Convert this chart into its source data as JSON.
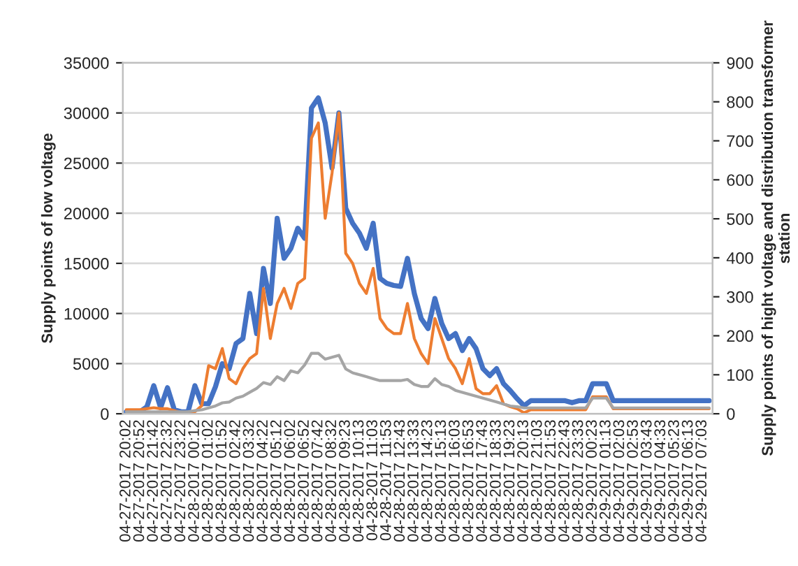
{
  "chart_data": {
    "type": "line",
    "ylabel": "Supply points of low voltage",
    "y2label": "Supply points of hight voltage and distribution transformer station",
    "categories": [
      "04-27-2017 20:02",
      null,
      "04-27-2017 20:52",
      null,
      "04-27-2017 21:42",
      null,
      "04-27-2017 22:32",
      null,
      "04-27-2017 23:22",
      null,
      "04-28-2017 00:12",
      null,
      "04-28-2017 01:02",
      null,
      "04-28-2017 01:52",
      null,
      "04-28-2017 02:42",
      null,
      "04-28-2017 03:32",
      null,
      "04-28-2017 04:22",
      null,
      "04-28-2017 05:12",
      null,
      "04-28-2017 06:02",
      null,
      "04-28-2017 06:52",
      null,
      "04-28-2017 07:42",
      null,
      "04-28-2017 08:32",
      null,
      "04-28-2017 09:23",
      null,
      "04-28-2017 10:13",
      null,
      "04-28-2017 11:03",
      null,
      "04-28-2017 11:53",
      null,
      "04-28-2017 12:43",
      null,
      "04-28-2017 13:33",
      null,
      "04-28-2017 14:23",
      null,
      "04-28-2017 15:13",
      null,
      "04-28-2017 16:03",
      null,
      "04-28-2017 16:53",
      null,
      "04-28-2017 17:43",
      null,
      "04-28-2017 18:33",
      null,
      "04-28-2017 19:23",
      null,
      "04-28-2017 20:13",
      null,
      "04-28-2017 21:03",
      null,
      "04-28-2017 21:53",
      null,
      "04-28-2017 22:43",
      null,
      "04-28-2017 23:33",
      null,
      "04-29-2017 00:23",
      null,
      "04-29-2017 01:13",
      null,
      "04-29-2017 02:03",
      null,
      "04-29-2017 02:53",
      null,
      "04-29-2017 03:43",
      null,
      "04-29-2017 04:33",
      null,
      "04-29-2017 05:23",
      null,
      "04-29-2017 06:13",
      null,
      "04-29-2017 07:03",
      null
    ],
    "series": [
      {
        "color": "#4472c4",
        "values": [
          200,
          200,
          200,
          700,
          2800,
          600,
          2600,
          400,
          200,
          200,
          2800,
          1000,
          1000,
          2700,
          5000,
          4500,
          7000,
          7500,
          12000,
          8000,
          14500,
          11000,
          19500,
          15500,
          16500,
          18500,
          17500,
          30500,
          31500,
          29000,
          24500,
          30000,
          20500,
          19000,
          18000,
          16500,
          19000,
          13500,
          13000,
          12800,
          12700,
          15500,
          12000,
          9500,
          8500,
          11500,
          9000,
          7500,
          8000,
          6300,
          7500,
          6500,
          4500,
          3800,
          4500,
          3000,
          2300,
          1500,
          800,
          1300,
          1300,
          1300,
          1300,
          1300,
          1300,
          1100,
          1300,
          1300,
          3000,
          3000,
          3000,
          1300,
          1300,
          1300,
          1300,
          1300,
          1300,
          1300,
          1300,
          1300,
          1300,
          1300,
          1300,
          1300,
          1300,
          1300
        ]
      },
      {
        "color": "#ed7d31",
        "values": [
          400,
          400,
          400,
          500,
          600,
          500,
          500,
          300,
          100,
          100,
          200,
          800,
          4800,
          4500,
          6500,
          3500,
          3000,
          4500,
          5500,
          6000,
          12500,
          7500,
          11000,
          12500,
          10500,
          13000,
          13500,
          27500,
          29000,
          19500,
          24000,
          30000,
          16000,
          15000,
          13000,
          12000,
          14500,
          9500,
          8500,
          8000,
          8000,
          11000,
          7500,
          6000,
          5000,
          9500,
          7500,
          5500,
          4500,
          3000,
          5500,
          2500,
          2000,
          2000,
          2800,
          1000,
          700,
          500,
          100,
          400,
          400,
          400,
          400,
          400,
          400,
          400,
          400,
          400,
          1700,
          1700,
          1700,
          500,
          500,
          500,
          500,
          500,
          500,
          500,
          500,
          500,
          500,
          500,
          500,
          500,
          500,
          500
        ]
      },
      {
        "color": "#a5a5a5",
        "axis": "y2",
        "values": [
          5,
          5,
          5,
          5,
          5,
          5,
          5,
          5,
          5,
          5,
          8,
          10,
          15,
          20,
          28,
          30,
          40,
          45,
          55,
          65,
          80,
          75,
          95,
          85,
          110,
          105,
          125,
          155,
          155,
          140,
          145,
          150,
          115,
          105,
          100,
          95,
          90,
          85,
          85,
          85,
          85,
          88,
          75,
          70,
          70,
          90,
          75,
          70,
          60,
          55,
          50,
          45,
          40,
          35,
          30,
          25,
          20,
          18,
          15,
          15,
          15,
          15,
          15,
          15,
          15,
          15,
          15,
          15,
          40,
          40,
          40,
          15,
          15,
          15,
          15,
          15,
          15,
          15,
          15,
          15,
          15,
          15,
          15,
          15,
          15,
          15
        ]
      }
    ],
    "ylim": [
      0,
      35000
    ],
    "yticks": [
      0,
      5000,
      10000,
      15000,
      20000,
      25000,
      30000,
      35000
    ],
    "y2lim": [
      0,
      900
    ],
    "y2ticks": [
      0,
      100,
      200,
      300,
      400,
      500,
      600,
      700,
      800,
      900
    ],
    "grid": "y"
  }
}
